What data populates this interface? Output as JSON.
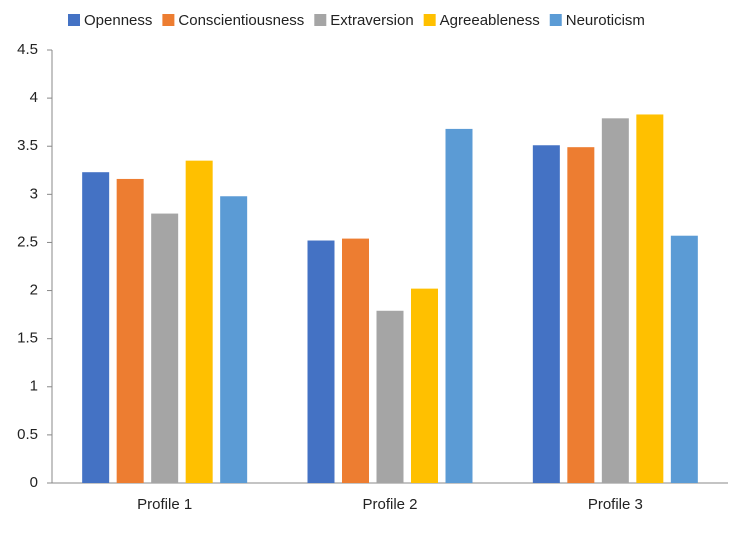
{
  "chart_data": {
    "type": "bar",
    "categories": [
      "Profile 1",
      "Profile 2",
      "Profile 3"
    ],
    "series": [
      {
        "name": "Openness",
        "color": "#4472c4",
        "values": [
          3.23,
          2.52,
          3.51
        ]
      },
      {
        "name": "Conscientiousness",
        "color": "#ed7d31",
        "values": [
          3.16,
          2.54,
          3.49
        ]
      },
      {
        "name": "Extraversion",
        "color": "#a5a5a5",
        "values": [
          2.8,
          1.79,
          3.79
        ]
      },
      {
        "name": "Agreeableness",
        "color": "#ffc000",
        "values": [
          3.35,
          2.02,
          3.83
        ]
      },
      {
        "name": "Neuroticism",
        "color": "#5b9bd5",
        "values": [
          2.98,
          3.68,
          2.57
        ]
      }
    ],
    "ylim": [
      0,
      4.5
    ],
    "yticks": [
      0,
      0.5,
      1,
      1.5,
      2,
      2.5,
      3,
      3.5,
      4,
      4.5
    ],
    "grid": false,
    "legend": "top"
  }
}
